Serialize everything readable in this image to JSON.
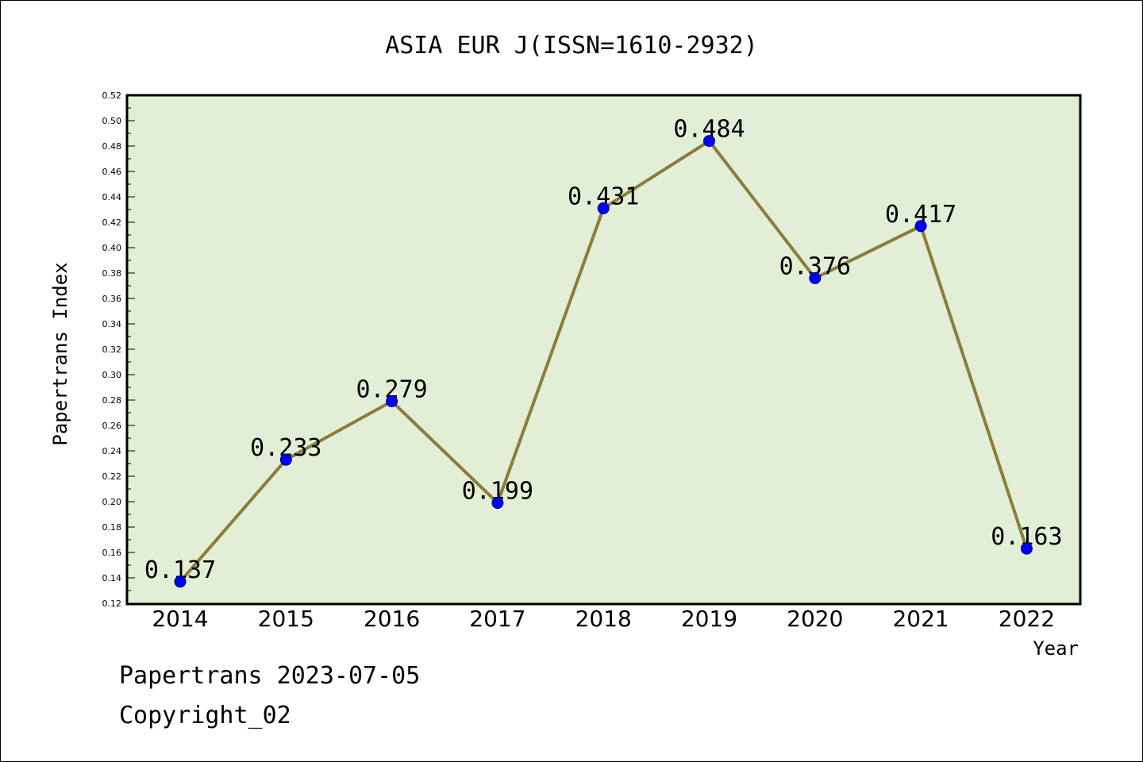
{
  "chart_data": {
    "type": "line",
    "title": "ASIA EUR J(ISSN=1610-2932)",
    "xlabel": "Year",
    "ylabel": "Papertrans Index",
    "categories": [
      "2014",
      "2015",
      "2016",
      "2017",
      "2018",
      "2019",
      "2020",
      "2021",
      "2022"
    ],
    "series": [
      {
        "values": [
          0.137,
          0.233,
          0.279,
          0.199,
          0.431,
          0.484,
          0.376,
          0.417,
          0.163
        ],
        "data_labels": [
          "0.137",
          "0.233",
          "0.279",
          "0.199",
          "0.431",
          "0.484",
          "0.376",
          "0.417",
          "0.163"
        ]
      }
    ],
    "ylim": [
      0.12,
      0.52
    ],
    "yticks": [
      "0.12",
      "0.14",
      "0.16",
      "0.18",
      "0.20",
      "0.22",
      "0.24",
      "0.26",
      "0.28",
      "0.30",
      "0.32",
      "0.34",
      "0.36",
      "0.38",
      "0.40",
      "0.42",
      "0.44",
      "0.46",
      "0.48",
      "0.50",
      "0.52"
    ],
    "grid": false,
    "colors": {
      "plot_background": "#e2efd6",
      "line": "#8b7d3a",
      "marker": "#0000ff",
      "marker_edge": "#000080"
    }
  },
  "footer": {
    "line1": "Papertrans 2023-07-05",
    "line2": "Copyright_02"
  }
}
